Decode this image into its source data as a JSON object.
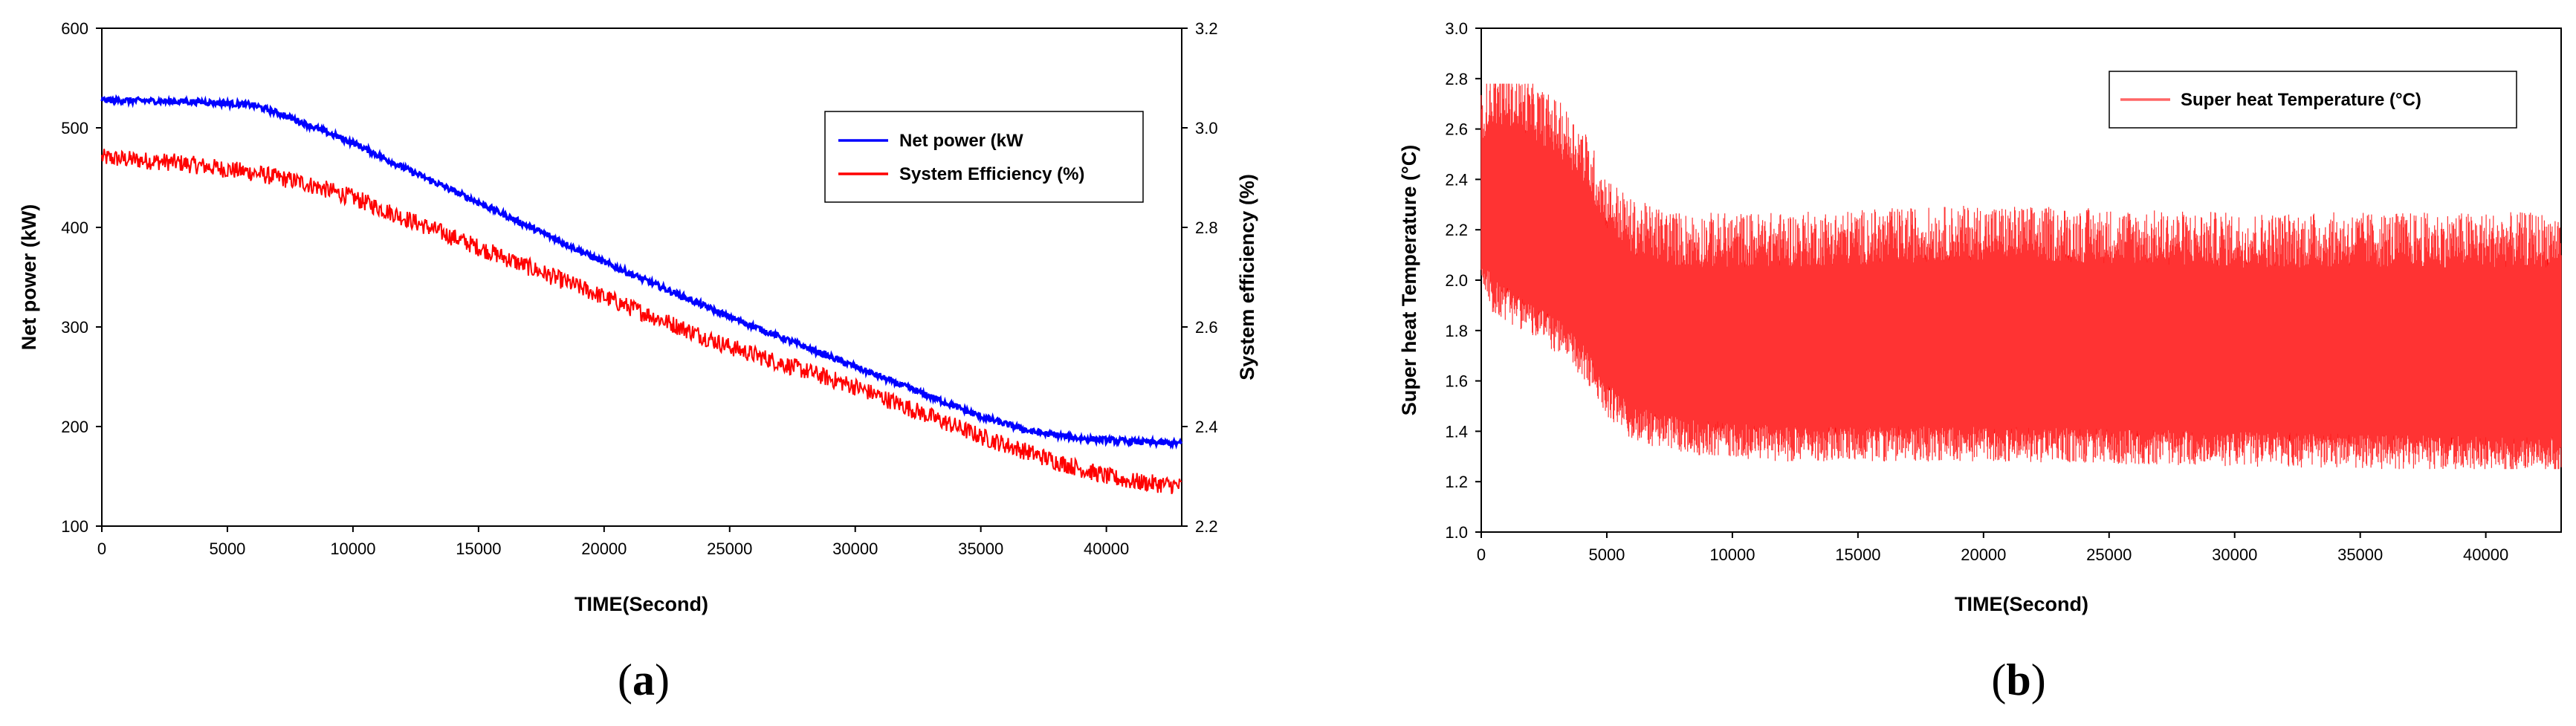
{
  "chart_data": [
    {
      "type": "line",
      "panel_label_parts": [
        "(",
        "a",
        ")"
      ],
      "xlabel": "TIME(Second)",
      "ylabel": "Net power (kW)",
      "y2label": "System efficiency (%)",
      "xlim": [
        0,
        43000
      ],
      "ylim": [
        100,
        600
      ],
      "y2lim": [
        2.2,
        3.2
      ],
      "xticks": [
        0,
        5000,
        10000,
        15000,
        20000,
        25000,
        30000,
        35000,
        40000
      ],
      "yticks": [
        100,
        200,
        300,
        400,
        500,
        600
      ],
      "y2ticks": [
        "2.2",
        "2.4",
        "2.6",
        "2.8",
        "3.0",
        "3.2"
      ],
      "legend_position": "top-right",
      "series": [
        {
          "name": "Net power (kW",
          "axis": "left",
          "color": "#0000ff",
          "noise": 3,
          "x": [
            0,
            2000,
            4000,
            6000,
            7000,
            8000,
            10000,
            12000,
            15000,
            20000,
            25000,
            30000,
            35000,
            37000,
            39000,
            41000,
            43000
          ],
          "y": [
            528,
            527,
            526,
            523,
            515,
            505,
            485,
            460,
            425,
            365,
            310,
            260,
            210,
            195,
            188,
            185,
            183
          ]
        },
        {
          "name": "System Efficiency (%)",
          "axis": "right",
          "color": "#ff0000",
          "noise": 0.018,
          "x": [
            0,
            3000,
            6000,
            8000,
            10000,
            12000,
            15000,
            20000,
            25000,
            30000,
            35000,
            38000,
            40000,
            41000,
            43000
          ],
          "y": [
            2.94,
            2.93,
            2.91,
            2.89,
            2.86,
            2.82,
            2.76,
            2.66,
            2.56,
            2.48,
            2.38,
            2.33,
            2.3,
            2.29,
            2.28
          ]
        }
      ]
    },
    {
      "type": "line",
      "panel_label_parts": [
        "(",
        "b",
        ")"
      ],
      "xlabel": "TIME(Second)",
      "ylabel": "Super heat Temperature (°C)",
      "xlim": [
        0,
        43000
      ],
      "ylim": [
        1.0,
        3.0
      ],
      "xticks": [
        0,
        5000,
        10000,
        15000,
        20000,
        25000,
        30000,
        35000,
        40000
      ],
      "yticks": [
        "1.0",
        "1.2",
        "1.4",
        "1.6",
        "1.8",
        "2.0",
        "2.2",
        "2.4",
        "2.6",
        "2.8",
        "3.0"
      ],
      "legend_position": "top-right",
      "series": [
        {
          "name": "Super heat Temperature (°C)",
          "color": "#ff0000",
          "band_x": [
            0,
            500,
            1500,
            3000,
            4000,
            5000,
            6000,
            8000,
            12000,
            20000,
            30000,
            40000,
            43000
          ],
          "band_upper": [
            2.55,
            2.62,
            2.6,
            2.5,
            2.4,
            2.2,
            2.1,
            2.05,
            2.05,
            2.08,
            2.05,
            2.05,
            2.05
          ],
          "band_lower": [
            2.1,
            2.0,
            1.95,
            1.85,
            1.75,
            1.6,
            1.5,
            1.45,
            1.42,
            1.42,
            1.4,
            1.38,
            1.38
          ],
          "spike_max": 2.78,
          "spike_min": 1.25
        }
      ]
    }
  ]
}
